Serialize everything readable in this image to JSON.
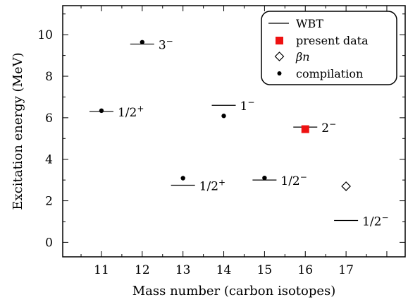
{
  "chart_data": {
    "type": "scatter",
    "xlabel": "Mass number (carbon isotopes)",
    "ylabel": "Excitation energy (MeV)",
    "xlim": [
      10.05,
      18.45
    ],
    "ylim": [
      -0.7,
      11.4
    ],
    "xticks": [
      11,
      12,
      13,
      14,
      15,
      16,
      17
    ],
    "yticks": [
      0,
      2,
      4,
      6,
      8,
      10
    ],
    "grid": false,
    "legend_position": "top-right",
    "legend": [
      {
        "name": "WBT",
        "marker": "line"
      },
      {
        "name": "present data",
        "marker": "red-square"
      },
      {
        "name": "βn",
        "marker": "open-diamond"
      },
      {
        "name": "compilation",
        "marker": "dot"
      }
    ],
    "wbt_levels": [
      {
        "x": 11,
        "y": 6.3,
        "label": "1/2+"
      },
      {
        "x": 12,
        "y": 9.55,
        "label": "3−"
      },
      {
        "x": 13,
        "y": 2.75,
        "label": "1/2+"
      },
      {
        "x": 14,
        "y": 6.6,
        "label": "1−"
      },
      {
        "x": 15,
        "y": 3.0,
        "label": "1/2−"
      },
      {
        "x": 16,
        "y": 5.55,
        "label": "2−"
      },
      {
        "x": 17,
        "y": 1.05,
        "label": "1/2−"
      }
    ],
    "present_data": [
      {
        "x": 16,
        "y": 5.45
      }
    ],
    "beta_n": [
      {
        "x": 17,
        "y": 2.7
      }
    ],
    "compilation": [
      {
        "x": 11,
        "y": 6.34
      },
      {
        "x": 12,
        "y": 9.64
      },
      {
        "x": 13,
        "y": 3.09
      },
      {
        "x": 14,
        "y": 6.09
      },
      {
        "x": 15,
        "y": 3.1
      }
    ],
    "colors": {
      "present_data": "#ee1111",
      "axis": "#000000"
    }
  }
}
